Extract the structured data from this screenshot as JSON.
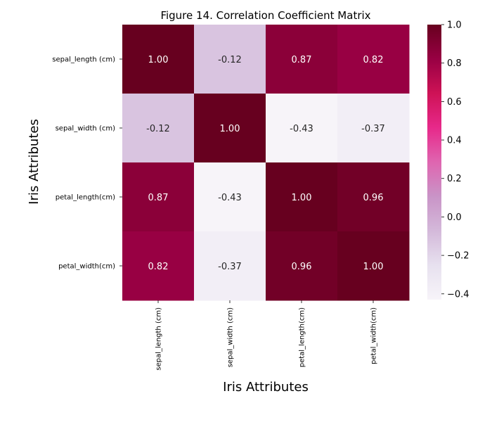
{
  "chart_data": {
    "type": "heatmap",
    "title": "Figure 14. Correlation Coefficient Matrix",
    "xlabel": "Iris Attributes",
    "ylabel": "Iris Attributes",
    "x_categories": [
      "sepal_length (cm)",
      "sepal_width (cm)",
      "petal_length(cm)",
      "petal_width(cm)"
    ],
    "y_categories": [
      "sepal_length (cm)",
      "sepal_width (cm)",
      "petal_length(cm)",
      "petal_width(cm)"
    ],
    "values": [
      [
        1.0,
        -0.12,
        0.87,
        0.82
      ],
      [
        -0.12,
        1.0,
        -0.43,
        -0.37
      ],
      [
        0.87,
        -0.43,
        1.0,
        0.96
      ],
      [
        0.82,
        -0.37,
        0.96,
        1.0
      ]
    ],
    "value_format": "2 decimals",
    "colormap": "PuRd",
    "colorbar": {
      "vmin": -0.43,
      "vmax": 1.0,
      "ticks": [
        -0.4,
        -0.2,
        0.0,
        0.2,
        0.4,
        0.6,
        0.8,
        1.0
      ],
      "tick_labels": [
        "−0.4",
        "−0.2",
        "0.0",
        "0.2",
        "0.4",
        "0.6",
        "0.8",
        "1.0"
      ]
    },
    "colors": {
      "text_dark": "#262626",
      "text_light": "#ffffff"
    }
  }
}
